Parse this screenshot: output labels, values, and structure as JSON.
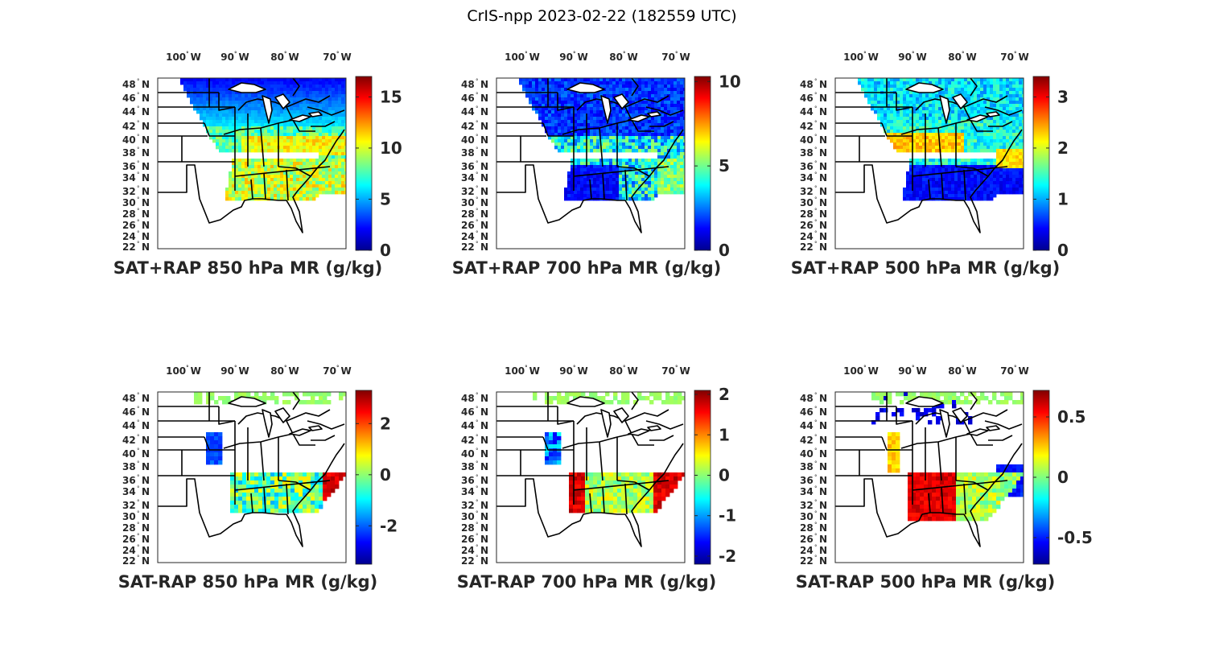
{
  "figure": {
    "title": "CrIS-npp 2023-02-22 (182559 UTC)"
  },
  "map_axes": {
    "lon_ticks": [
      {
        "deg": "100",
        "hemi": "W"
      },
      {
        "deg": "90",
        "hemi": "W"
      },
      {
        "deg": "80",
        "hemi": "W"
      },
      {
        "deg": "70",
        "hemi": "W"
      }
    ],
    "lat_ticks": [
      {
        "deg": "48",
        "hemi": "N"
      },
      {
        "deg": "46",
        "hemi": "N"
      },
      {
        "deg": "44",
        "hemi": "N"
      },
      {
        "deg": "42",
        "hemi": "N"
      },
      {
        "deg": "40",
        "hemi": "N"
      },
      {
        "deg": "38",
        "hemi": "N"
      },
      {
        "deg": "36",
        "hemi": "N"
      },
      {
        "deg": "34",
        "hemi": "N"
      },
      {
        "deg": "32",
        "hemi": "N"
      },
      {
        "deg": "30",
        "hemi": "N"
      },
      {
        "deg": "28",
        "hemi": "N"
      },
      {
        "deg": "26",
        "hemi": "N"
      },
      {
        "deg": "24",
        "hemi": "N"
      },
      {
        "deg": "22",
        "hemi": "N"
      }
    ],
    "degree_symbol": "°"
  },
  "colormap": "jet",
  "panels": [
    {
      "id": "sat-plus-rap-850",
      "label": "SAT+RAP 850 hPa MR (g/kg)",
      "colorbar": {
        "range": [
          0,
          17
        ],
        "ticks": [
          "0",
          "5",
          "10",
          "15"
        ],
        "tick_values": [
          0,
          5,
          10,
          15
        ]
      }
    },
    {
      "id": "sat-plus-rap-700",
      "label": "SAT+RAP 700 hPa MR (g/kg)",
      "colorbar": {
        "range": [
          0,
          10.3
        ],
        "ticks": [
          "0",
          "5",
          "10"
        ],
        "tick_values": [
          0,
          5,
          10
        ]
      }
    },
    {
      "id": "sat-plus-rap-500",
      "label": "SAT+RAP 500 hPa MR (g/kg)",
      "colorbar": {
        "range": [
          0,
          3.4
        ],
        "ticks": [
          "0",
          "1",
          "2",
          "3"
        ],
        "tick_values": [
          0,
          1,
          2,
          3
        ]
      }
    },
    {
      "id": "sat-minus-rap-850",
      "label": "SAT-RAP 850 hPa MR (g/kg)",
      "colorbar": {
        "range": [
          -3.5,
          3.3
        ],
        "ticks": [
          "-2",
          "0",
          "2"
        ],
        "tick_values": [
          -2,
          0,
          2
        ]
      }
    },
    {
      "id": "sat-minus-rap-700",
      "label": "SAT-RAP 700 hPa MR (g/kg)",
      "colorbar": {
        "range": [
          -2.2,
          2.1
        ],
        "ticks": [
          "-2",
          "-1",
          "0",
          "1",
          "2"
        ],
        "tick_values": [
          -2,
          -1,
          0,
          1,
          2
        ]
      }
    },
    {
      "id": "sat-minus-rap-500",
      "label": "SAT-RAP 500 hPa MR (g/kg)",
      "colorbar": {
        "range": [
          -0.72,
          0.72
        ],
        "ticks": [
          "-0.5",
          "0",
          "0.5"
        ],
        "tick_values": [
          -0.5,
          0,
          0.5
        ]
      }
    }
  ]
}
